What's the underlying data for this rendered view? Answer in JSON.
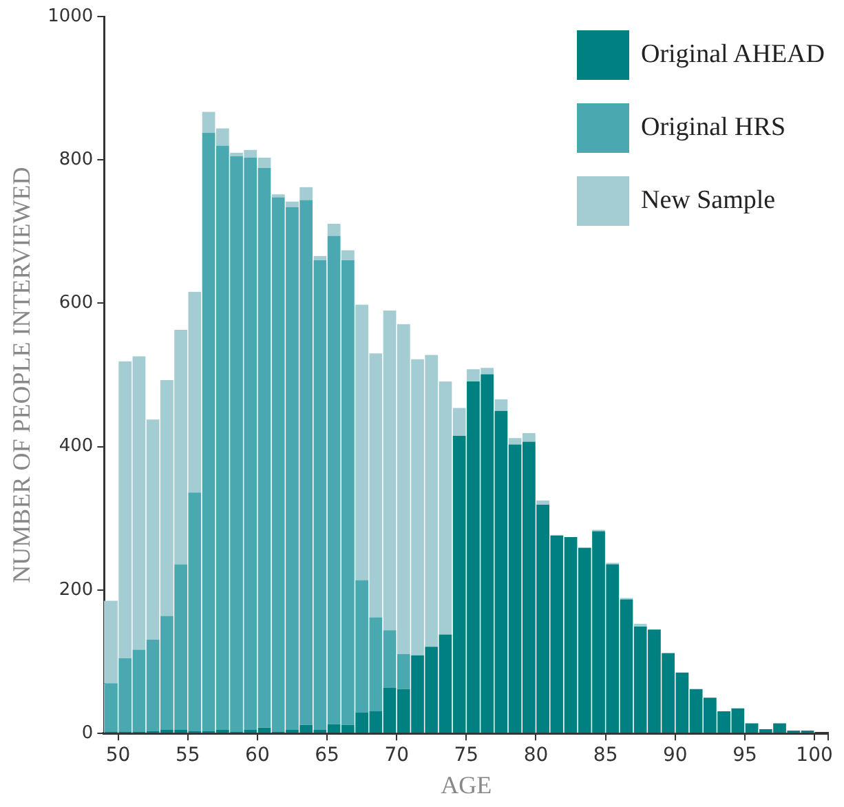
{
  "chart_data": {
    "type": "bar",
    "xlabel": "AGE",
    "ylabel": "NUMBER OF PEOPLE INTERVIEWED",
    "categories": [
      null,
      "50",
      null,
      null,
      null,
      null,
      "55",
      null,
      null,
      null,
      null,
      "60",
      null,
      null,
      null,
      null,
      "65",
      null,
      null,
      null,
      null,
      "70",
      null,
      null,
      null,
      null,
      "75",
      null,
      null,
      null,
      null,
      "80",
      null,
      null,
      null,
      null,
      "85",
      null,
      null,
      null,
      null,
      "90",
      null,
      null,
      null,
      null,
      "95",
      null,
      null,
      null,
      null,
      "100"
    ],
    "stacked": true,
    "series": [
      {
        "name": "Original AHEAD",
        "color": "#008080",
        "values": [
          2,
          2,
          2,
          3,
          5,
          5,
          3,
          3,
          5,
          2,
          5,
          8,
          2,
          5,
          12,
          5,
          13,
          12,
          29,
          31,
          64,
          62,
          109,
          121,
          138,
          415,
          491,
          501,
          450,
          403,
          407,
          319,
          276,
          274,
          259,
          282,
          236,
          187,
          149,
          145,
          112,
          85,
          62,
          50,
          31,
          35,
          14,
          6,
          14,
          4,
          4,
          null
        ]
      },
      {
        "name": "Original HRS",
        "color": "#4aa8b0",
        "values": [
          68,
          103,
          115,
          128,
          159,
          231,
          333,
          835,
          815,
          803,
          798,
          781,
          746,
          729,
          732,
          655,
          681,
          648,
          185,
          131,
          80,
          49,
          0,
          0,
          0,
          0,
          0,
          0,
          0,
          0,
          0,
          0,
          0,
          0,
          0,
          0,
          0,
          0,
          0,
          0,
          0,
          0,
          0,
          0,
          0,
          0,
          0,
          0,
          0,
          0,
          0,
          null
        ]
      },
      {
        "name": "New Sample",
        "color": "#a3cdd3",
        "values": [
          115,
          414,
          409,
          307,
          329,
          327,
          280,
          29,
          24,
          5,
          11,
          14,
          4,
          8,
          18,
          6,
          17,
          14,
          384,
          368,
          446,
          460,
          413,
          407,
          353,
          39,
          17,
          9,
          16,
          9,
          12,
          6,
          1,
          0,
          0,
          2,
          2,
          2,
          4,
          0,
          0,
          0,
          0,
          0,
          0,
          0,
          0,
          0,
          0,
          0,
          0,
          null
        ]
      }
    ],
    "ylim": [
      0,
      1000
    ],
    "yticks": [
      0,
      200,
      400,
      600,
      800,
      1000
    ],
    "grid": false,
    "legend": "top right"
  }
}
